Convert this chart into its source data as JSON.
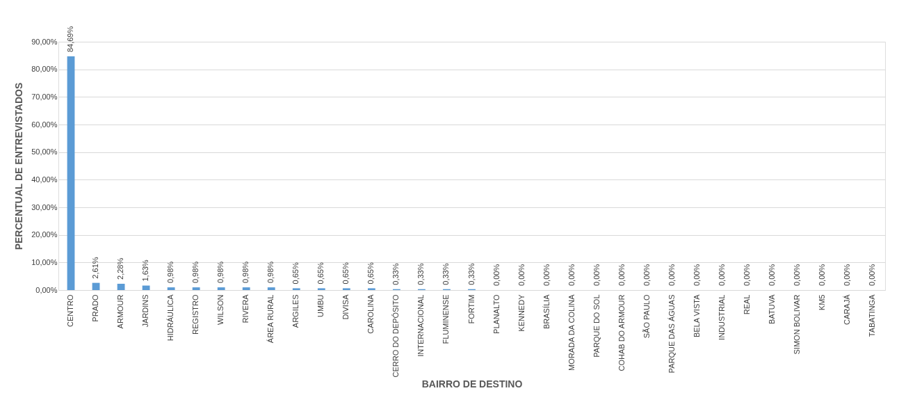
{
  "chart_data": {
    "type": "bar",
    "xlabel": "BAIRRO DE DESTINO",
    "ylabel": "PERCENTUAL DE ENTREVISTADOS",
    "categories": [
      "CENTRO",
      "PRADO",
      "ARMOUR",
      "JARDINS",
      "HIDRÁULICA",
      "REGISTRO",
      "WILSON",
      "RIVERA",
      "ÁREA RURAL",
      "ARGILES",
      "UMBU",
      "DIVISA",
      "CAROLINA",
      "CERRO DO DEPÓSITO",
      "INTERNACIONAL",
      "FLUMINENSE",
      "FORTIM",
      "PLANALTO",
      "KENNEDY",
      "BRASÍLIA",
      "MORADA DA COLINA",
      "PARQUE DO SOL",
      "COHAB DO ARMOUR",
      "SÃO PAULO",
      "PARQUE DAS ÁGUAS",
      "BELA VISTA",
      "INDUSTRIAL",
      "REAL",
      "BATUVA",
      "SIMON BOLIVAR",
      "KM5",
      "CARAJÁ",
      "TABATINGA"
    ],
    "values": [
      84.69,
      2.61,
      2.28,
      1.63,
      0.98,
      0.98,
      0.98,
      0.98,
      0.98,
      0.65,
      0.65,
      0.65,
      0.65,
      0.33,
      0.33,
      0.33,
      0.33,
      0,
      0,
      0,
      0,
      0,
      0,
      0,
      0,
      0,
      0,
      0,
      0,
      0,
      0,
      0,
      0
    ],
    "value_labels": [
      "84,69%",
      "2,61%",
      "2,28%",
      "1,63%",
      "0,98%",
      "0,98%",
      "0,98%",
      "0,98%",
      "0,98%",
      "0,65%",
      "0,65%",
      "0,65%",
      "0,65%",
      "0,33%",
      "0,33%",
      "0,33%",
      "0,33%",
      "0,00%",
      "0,00%",
      "0,00%",
      "0,00%",
      "0,00%",
      "0,00%",
      "0,00%",
      "0,00%",
      "0,00%",
      "0,00%",
      "0,00%",
      "0,00%",
      "0,00%",
      "0,00%",
      "0,00%",
      "0,00%"
    ],
    "color": "#5b9bd5",
    "ylim": [
      0,
      90
    ],
    "yticks": [
      {
        "value": 0,
        "label": "0,00%"
      },
      {
        "value": 10,
        "label": "10,00%"
      },
      {
        "value": 20,
        "label": "20,00%"
      },
      {
        "value": 30,
        "label": "30,00%"
      },
      {
        "value": 40,
        "label": "40,00%"
      },
      {
        "value": 50,
        "label": "50,00%"
      },
      {
        "value": 60,
        "label": "60,00%"
      },
      {
        "value": 70,
        "label": "70,00%"
      },
      {
        "value": 80,
        "label": "80,00%"
      },
      {
        "value": 90,
        "label": "90,00%"
      }
    ],
    "grid": "y"
  }
}
